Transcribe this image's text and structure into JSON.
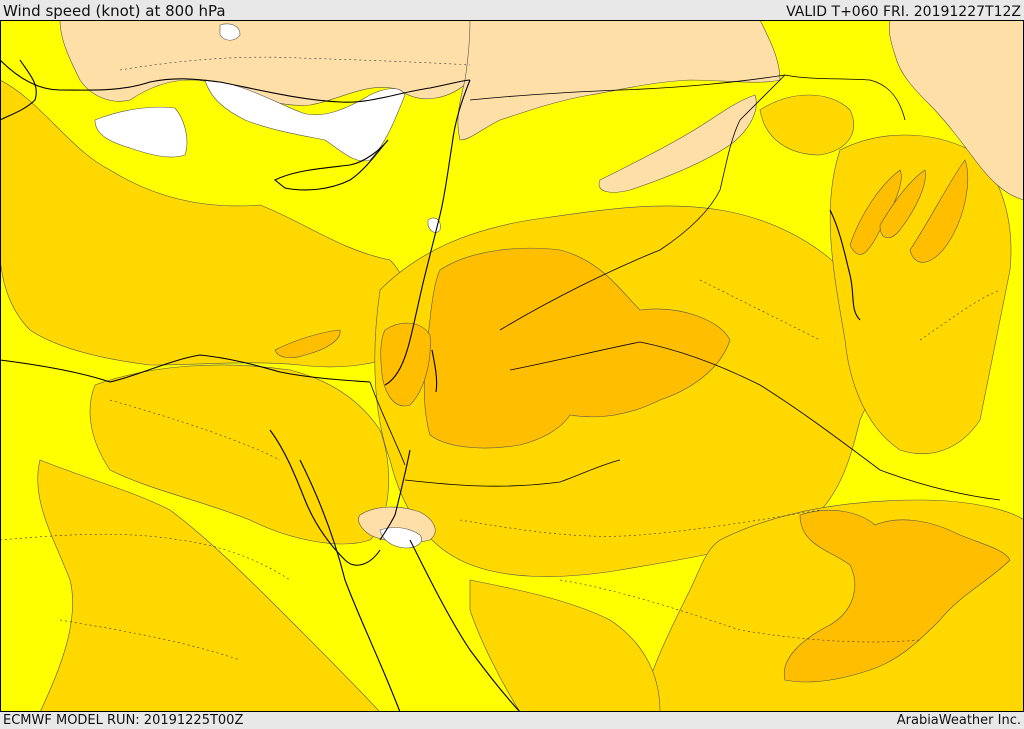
{
  "header": {
    "title": "Wind speed (knot) at 800 hPa",
    "valid_time": "VALID T+060 FRI. 20191227T12Z"
  },
  "footer": {
    "model_run": "ECMWF MODEL RUN: 20191225T00Z",
    "credit": "ArabiaWeather Inc."
  },
  "map": {
    "colors": {
      "calm": "#ffffff",
      "light": "#ffdfa8",
      "moderate": "#ffff00",
      "fresh": "#ffd800",
      "strong": "#ffbf00",
      "coastline": "#000000",
      "contour": "#444444"
    }
  }
}
